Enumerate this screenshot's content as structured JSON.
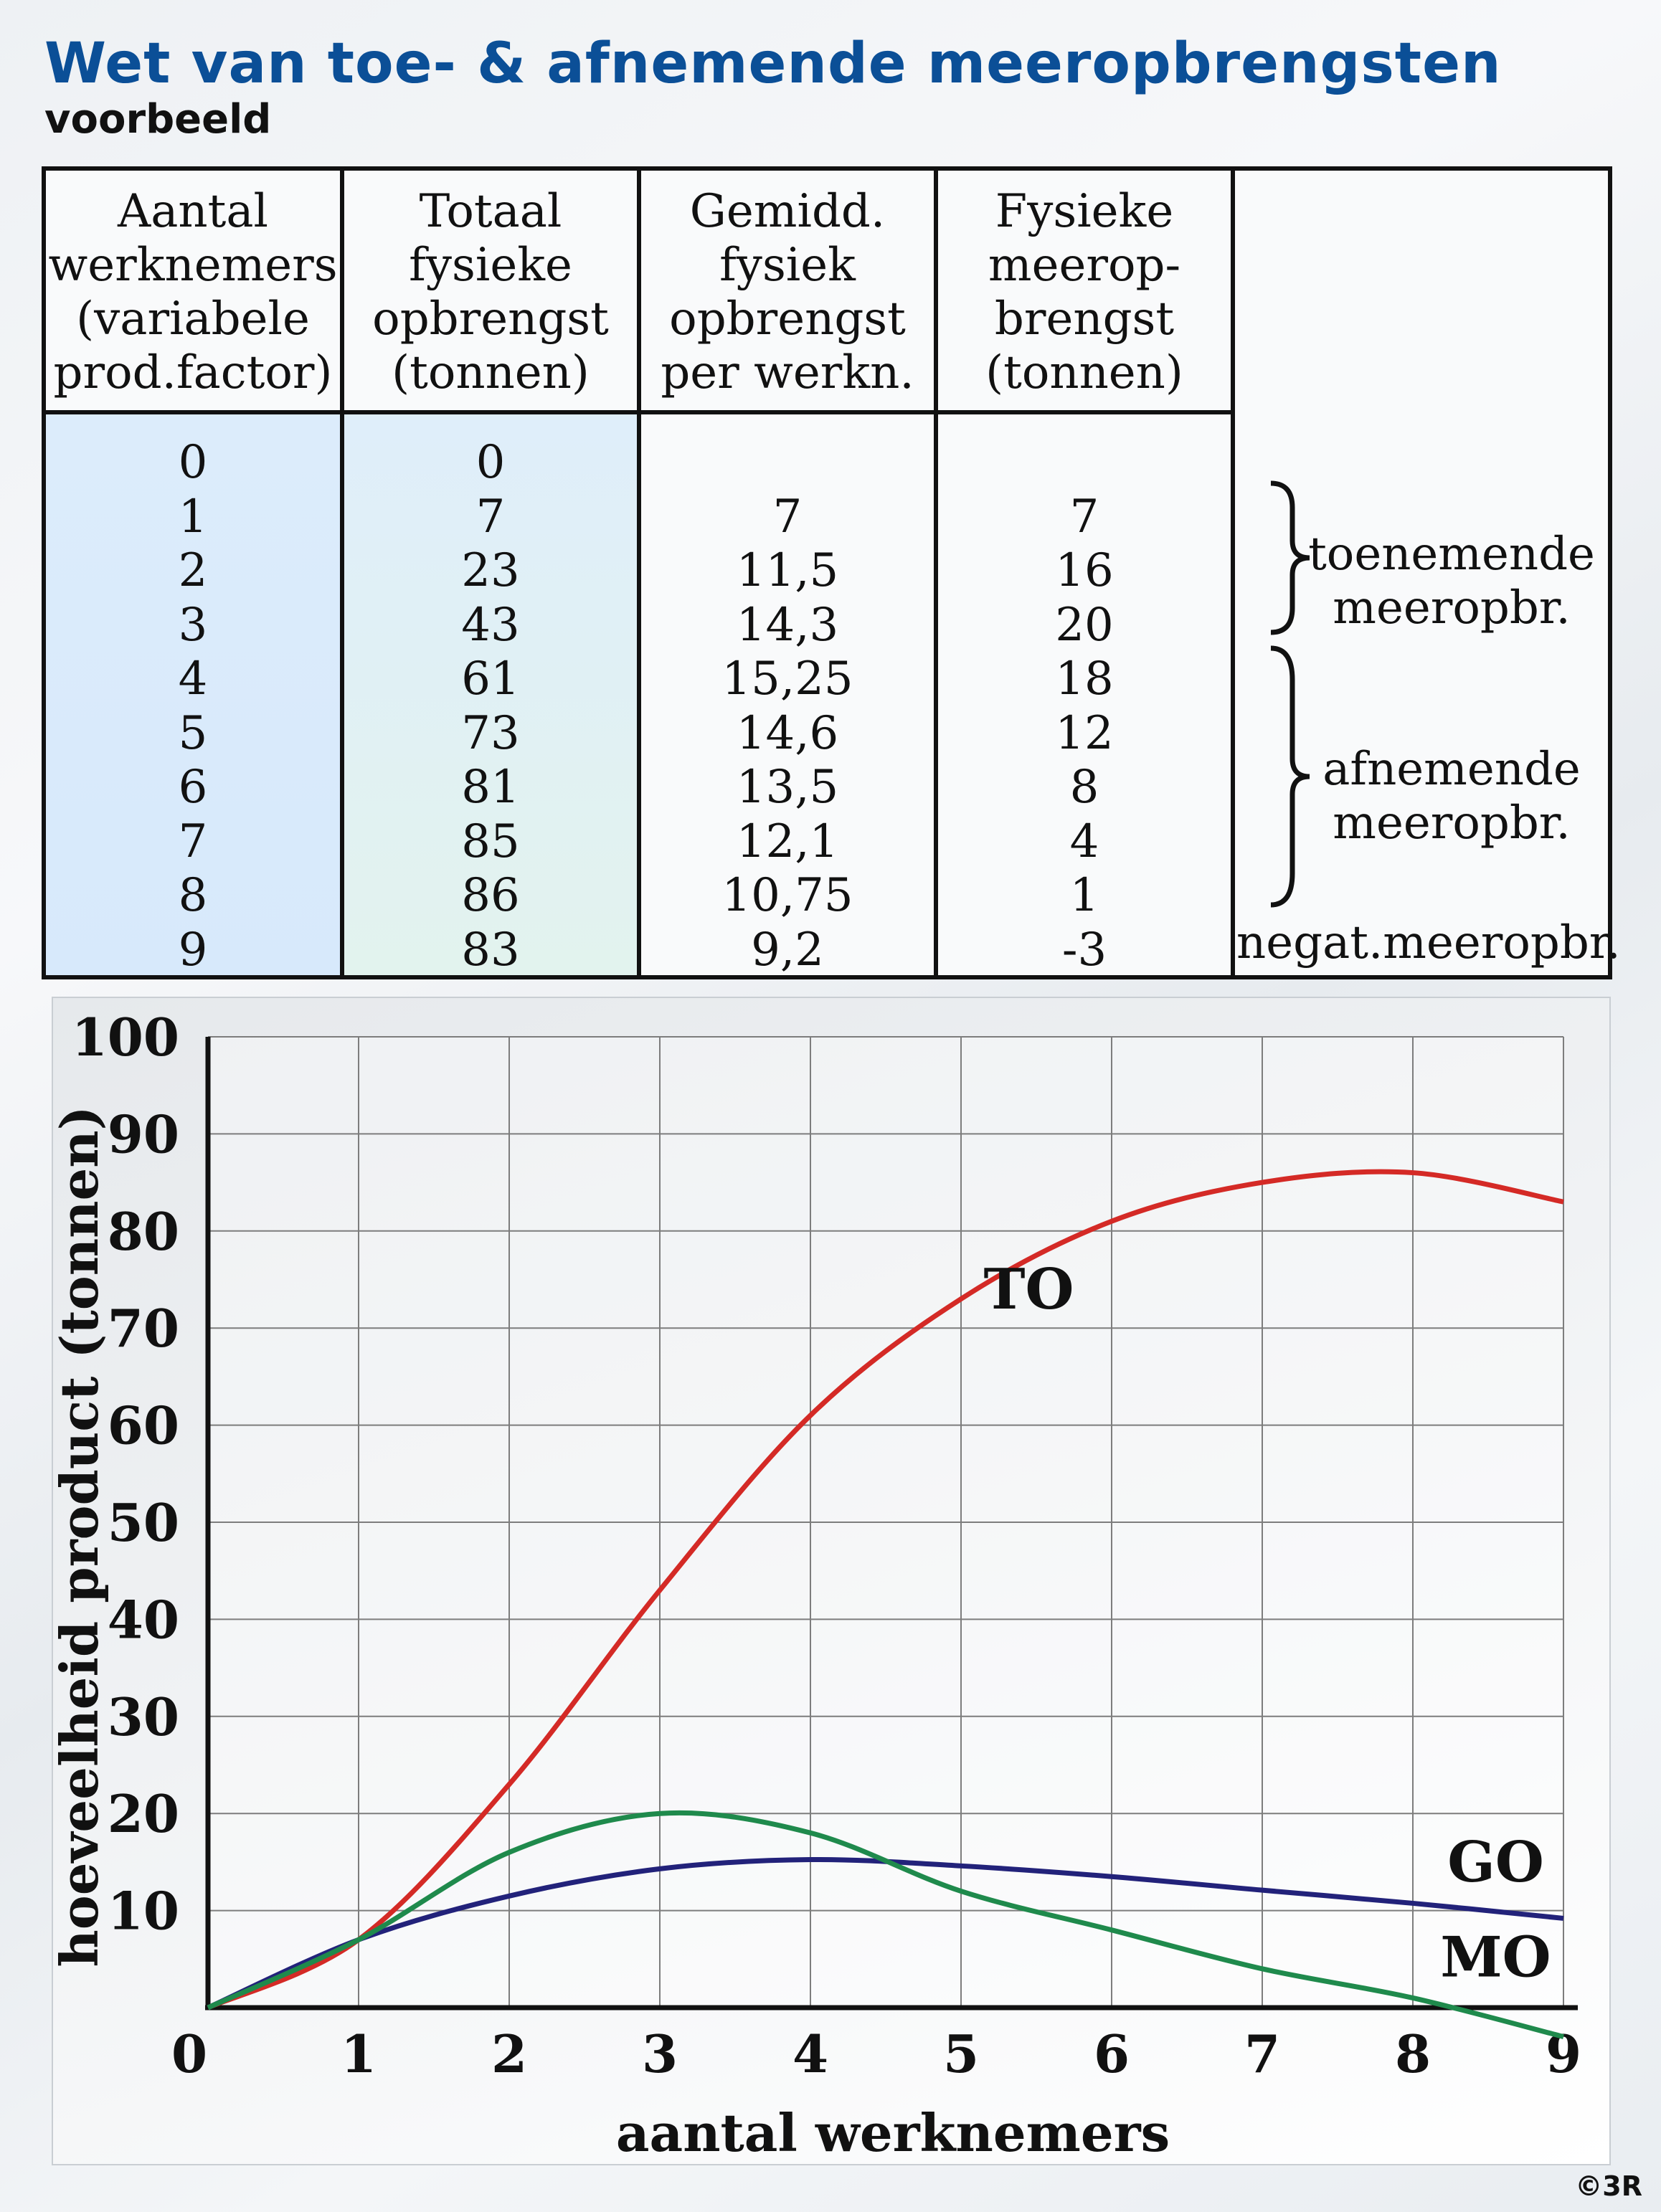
{
  "header": {
    "title": "Wet van toe- & afnemende meeropbrengsten",
    "subtitle": "voorbeeld"
  },
  "table": {
    "headers": [
      [
        "Aantal",
        "werknemers",
        "(variabele",
        "prod.factor)"
      ],
      [
        "Totaal",
        "fysieke",
        "opbrengst",
        "(tonnen)"
      ],
      [
        "Gemidd.",
        "fysiek",
        "opbrengst",
        "per werkn."
      ],
      [
        "Fysieke",
        "meerop-",
        "brengst",
        "(tonnen)"
      ]
    ],
    "columns": [
      [
        "0",
        "1",
        "2",
        "3",
        "4",
        "5",
        "6",
        "7",
        "8",
        "9"
      ],
      [
        "0",
        "7",
        "23",
        "43",
        "61",
        "73",
        "81",
        "85",
        "86",
        "83"
      ],
      [
        "",
        "7",
        "11,5",
        "14,3",
        "15,25",
        "14,6",
        "13,5",
        "12,1",
        "10,75",
        "9,2"
      ],
      [
        "",
        "7",
        "16",
        "20",
        "18",
        "12",
        "8",
        "4",
        "1",
        "-3"
      ]
    ],
    "annotations": {
      "increasing": [
        "toenemende",
        "meeropbr."
      ],
      "decreasing": [
        "afnemende",
        "meeropbr."
      ],
      "negative": "negat.meeropbr."
    }
  },
  "chart_data": {
    "type": "line",
    "xlabel": "aantal werknemers",
    "ylabel": "hoeveelheid product (tonnen)",
    "xlim": [
      0,
      9
    ],
    "ylim": [
      0,
      100
    ],
    "xticks": [
      0,
      1,
      2,
      3,
      4,
      5,
      6,
      7,
      8,
      9
    ],
    "yticks": [
      10,
      20,
      30,
      40,
      50,
      60,
      70,
      80,
      90,
      100
    ],
    "grid": true,
    "series": [
      {
        "name": "TO",
        "color": "#d42a26",
        "x": [
          0,
          1,
          2,
          3,
          4,
          5,
          6,
          7,
          8,
          9
        ],
        "values": [
          0,
          7,
          23,
          43,
          61,
          73,
          81,
          85,
          86,
          83
        ]
      },
      {
        "name": "GO",
        "color": "#22227a",
        "x": [
          0,
          1,
          2,
          3,
          4,
          5,
          6,
          7,
          8,
          9
        ],
        "values": [
          0,
          7,
          11.5,
          14.3,
          15.25,
          14.6,
          13.5,
          12.1,
          10.75,
          9.2
        ]
      },
      {
        "name": "MO",
        "color": "#1f8a4c",
        "x": [
          0,
          1,
          2,
          3,
          4,
          5,
          6,
          7,
          8,
          9
        ],
        "values": [
          0,
          7,
          16,
          20,
          18,
          12,
          8,
          4,
          1,
          -3
        ]
      }
    ]
  },
  "footer": {
    "copyright": "©3R"
  }
}
